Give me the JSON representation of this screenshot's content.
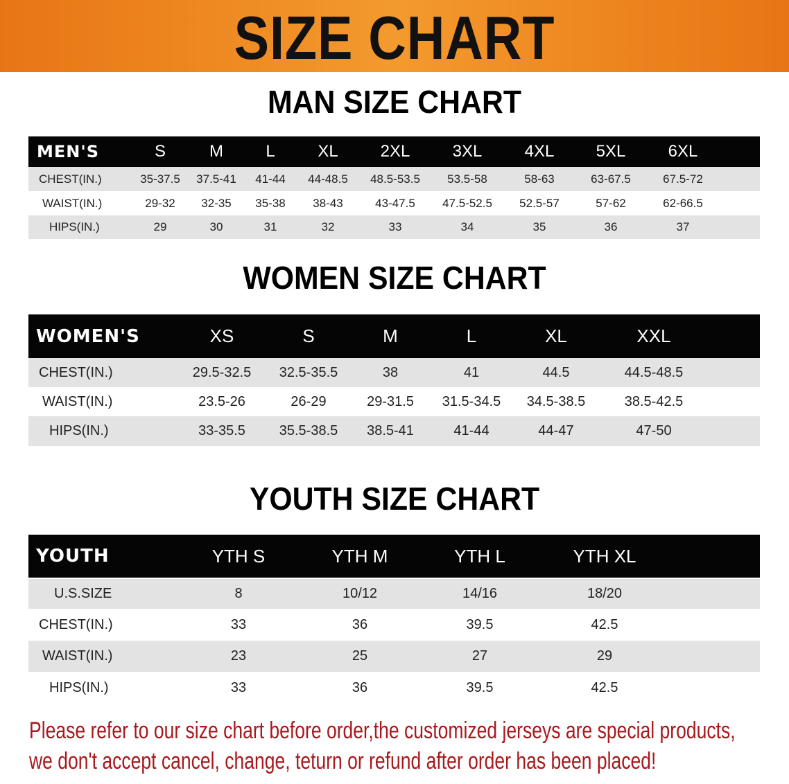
{
  "banner": {
    "title": "SIZE CHART",
    "color": "#ef8a22"
  },
  "men": {
    "title": "MAN SIZE CHART",
    "header": [
      "MEN'S",
      "S",
      "M",
      "L",
      "XL",
      "2XL",
      "3XL",
      "4XL",
      "5XL",
      "6XL"
    ],
    "rows": [
      [
        "CHEST(IN.)",
        "35-37.5",
        "37.5-41",
        "41-44",
        "44-48.5",
        "48.5-53.5",
        "53.5-58",
        "58-63",
        "63-67.5",
        "67.5-72"
      ],
      [
        "WAIST(IN.)",
        "29-32",
        "32-35",
        "35-38",
        "38-43",
        "43-47.5",
        "47.5-52.5",
        "52.5-57",
        "57-62",
        "62-66.5"
      ],
      [
        "HIPS(IN.)",
        "29",
        "30",
        "31",
        "32",
        "33",
        "34",
        "35",
        "36",
        "37"
      ]
    ]
  },
  "women": {
    "title": "WOMEN SIZE CHART",
    "header": [
      "WOMEN'S",
      "XS",
      "S",
      "M",
      "L",
      "XL",
      "XXL"
    ],
    "rows": [
      [
        "CHEST(IN.)",
        "29.5-32.5",
        "32.5-35.5",
        "38",
        "41",
        "44.5",
        "44.5-48.5"
      ],
      [
        "WAIST(IN.)",
        "23.5-26",
        "26-29",
        "29-31.5",
        "31.5-34.5",
        "34.5-38.5",
        "38.5-42.5"
      ],
      [
        "HIPS(IN.)",
        "33-35.5",
        "35.5-38.5",
        "38.5-41",
        "41-44",
        "44-47",
        "47-50"
      ]
    ]
  },
  "youth": {
    "title": "YOUTH SIZE CHART",
    "header": [
      "YOUTH",
      "YTH S",
      "YTH M",
      "YTH L",
      "YTH XL"
    ],
    "rows": [
      [
        "U.S.SIZE",
        "8",
        "10/12",
        "14/16",
        "18/20"
      ],
      [
        "CHEST(IN.)",
        "33",
        "36",
        "39.5",
        "42.5"
      ],
      [
        "WAIST(IN.)",
        "23",
        "25",
        "27",
        "29"
      ],
      [
        "HIPS(IN.)",
        "33",
        "36",
        "39.5",
        "42.5"
      ]
    ]
  },
  "notice": {
    "line1": "Please refer to our size chart before order,the customized jerseys are special products,",
    "line2": "we don't accept cancel, change, teturn or refund after order has been placed!",
    "color": "#a8181c"
  }
}
